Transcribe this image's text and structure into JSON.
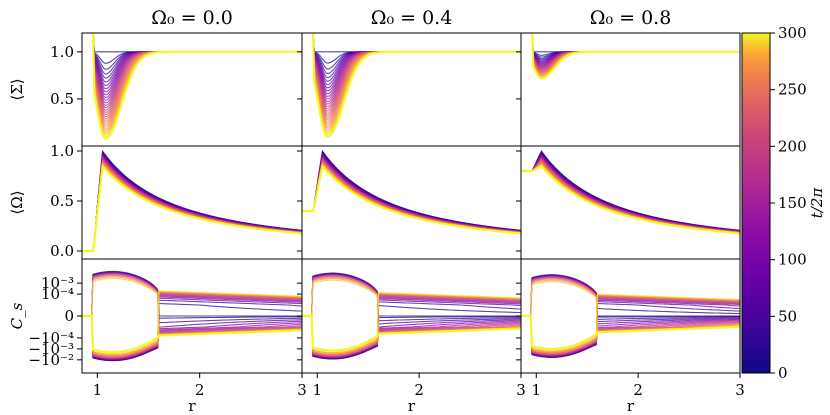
{
  "chart_data": {
    "type": "line",
    "layout": "3x3 grid of line plots sharing x axis per column and y axis per row",
    "titles": [
      "Ω₀ = 0.0",
      "Ω₀ = 0.4",
      "Ω₀ = 0.8"
    ],
    "xlabel": "r",
    "xlim": [
      0.85,
      3.0
    ],
    "xticks": [
      "1",
      "2",
      "3"
    ],
    "row_labels": [
      "⟨Σ⟩",
      "⟨Ω⟩",
      "C_s"
    ],
    "rows": [
      {
        "name": "sigma",
        "ylim": [
          0.0,
          1.2
        ],
        "yticks": [
          "0.5",
          "1.0"
        ]
      },
      {
        "name": "omega",
        "ylim": [
          -0.08,
          1.05
        ],
        "yticks": [
          "0.0",
          "0.5",
          "1.0"
        ]
      },
      {
        "name": "cs",
        "scale": "symlog",
        "ylim_symlog": [
          -2.6,
          2.6
        ],
        "yticks": [
          "10⁻³",
          "10⁻⁴",
          "0",
          "−10⁻⁴",
          "−10⁻³",
          "−10⁻²"
        ]
      }
    ],
    "colorbar": {
      "label": "t/2π",
      "range": [
        0,
        300
      ],
      "ticks": [
        "0",
        "50",
        "100",
        "150",
        "200",
        "250",
        "300"
      ],
      "colormap": "plasma"
    },
    "series_per_panel": 30,
    "time_range": [
      0,
      300
    ],
    "panels": [
      {
        "omega0": 0.0,
        "sigma_min_final": 0.08,
        "sigma_min_r": 1.08,
        "sigma_width": 0.17,
        "omega_peak_final": 0.85,
        "cs_amplitude": 1.0
      },
      {
        "omega0": 0.4,
        "sigma_min_final": 0.1,
        "sigma_min_r": 1.1,
        "sigma_width": 0.17,
        "omega_peak_final": 0.83,
        "cs_amplitude": 0.7
      },
      {
        "omega0": 0.8,
        "sigma_min_final": 0.72,
        "sigma_min_r": 1.05,
        "sigma_width": 0.14,
        "omega_peak_final": 0.85,
        "cs_amplitude": 0.5
      }
    ]
  }
}
